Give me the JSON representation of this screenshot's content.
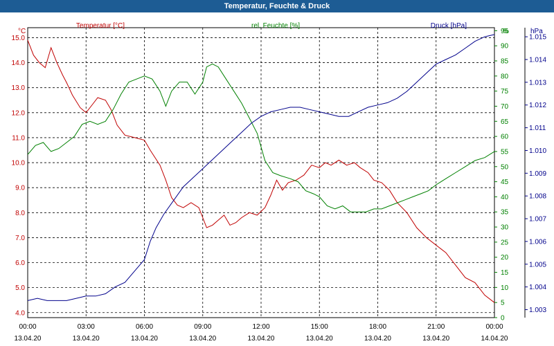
{
  "window": {
    "title": "Temperatur, Feuchte & Druck"
  },
  "chart_data": {
    "type": "line",
    "title": "Temperatur, Feuchte & Druck",
    "grid": true,
    "x_ticks": [
      {
        "time": "00:00",
        "date": "13.04.20"
      },
      {
        "time": "03:00",
        "date": "13.04.20"
      },
      {
        "time": "06:00",
        "date": "13.04.20"
      },
      {
        "time": "09:00",
        "date": "13.04.20"
      },
      {
        "time": "12:00",
        "date": "13.04.20"
      },
      {
        "time": "15:00",
        "date": "13.04.20"
      },
      {
        "time": "18:00",
        "date": "13.04.20"
      },
      {
        "time": "21:00",
        "date": "13.04.20"
      },
      {
        "time": "00:00",
        "date": "14.04.20"
      }
    ],
    "xlim_hours": [
      0,
      24
    ],
    "axes": {
      "temperature": {
        "unit": "°C",
        "ylim": [
          3.8,
          15.4
        ],
        "ticks": [
          "4.0",
          "5.0",
          "6.0",
          "7.0",
          "8.0",
          "9.0",
          "10.0",
          "11.0",
          "12.0",
          "13.0",
          "14.0",
          "15.0"
        ]
      },
      "humidity": {
        "unit": "%",
        "ylim": [
          0,
          96
        ],
        "ticks": [
          "0",
          "5",
          "10",
          "15",
          "20",
          "25",
          "30",
          "35",
          "40",
          "45",
          "50",
          "55",
          "60",
          "65",
          "70",
          "75",
          "80",
          "85",
          "90",
          "95",
          "%"
        ]
      },
      "pressure": {
        "unit": "hPa",
        "ylim": [
          1.00265,
          1.0154
        ],
        "ticks": [
          "1.003",
          "1.004",
          "1.005",
          "1.006",
          "1.007",
          "1.008",
          "1.009",
          "1.010",
          "1.011",
          "1.012",
          "1.013",
          "1.014",
          "1.015"
        ]
      }
    },
    "series": [
      {
        "name": "Temperatur [°C]",
        "axis": "temperature",
        "color": "#c00000",
        "points": [
          [
            0,
            14.9
          ],
          [
            0.3,
            14.3
          ],
          [
            0.6,
            14.0
          ],
          [
            0.9,
            13.8
          ],
          [
            1.2,
            14.6
          ],
          [
            1.5,
            14.0
          ],
          [
            1.8,
            13.5
          ],
          [
            2.0,
            13.2
          ],
          [
            2.3,
            12.7
          ],
          [
            2.7,
            12.2
          ],
          [
            3.0,
            12.0
          ],
          [
            3.3,
            12.3
          ],
          [
            3.6,
            12.6
          ],
          [
            4.0,
            12.5
          ],
          [
            4.3,
            12.1
          ],
          [
            4.6,
            11.5
          ],
          [
            5.0,
            11.1
          ],
          [
            5.5,
            11.0
          ],
          [
            6.0,
            10.9
          ],
          [
            6.3,
            10.5
          ],
          [
            6.8,
            9.9
          ],
          [
            7.1,
            9.3
          ],
          [
            7.4,
            8.6
          ],
          [
            7.7,
            8.3
          ],
          [
            8.0,
            8.2
          ],
          [
            8.4,
            8.4
          ],
          [
            8.8,
            8.2
          ],
          [
            9.0,
            7.8
          ],
          [
            9.2,
            7.4
          ],
          [
            9.5,
            7.5
          ],
          [
            9.8,
            7.7
          ],
          [
            10.1,
            7.9
          ],
          [
            10.4,
            7.5
          ],
          [
            10.7,
            7.6
          ],
          [
            11.0,
            7.8
          ],
          [
            11.4,
            8.0
          ],
          [
            11.8,
            7.9
          ],
          [
            12.2,
            8.2
          ],
          [
            12.5,
            8.7
          ],
          [
            12.8,
            9.3
          ],
          [
            13.1,
            8.9
          ],
          [
            13.4,
            9.2
          ],
          [
            13.8,
            9.3
          ],
          [
            14.2,
            9.5
          ],
          [
            14.6,
            9.9
          ],
          [
            15.0,
            9.8
          ],
          [
            15.3,
            10.0
          ],
          [
            15.6,
            9.9
          ],
          [
            16.0,
            10.1
          ],
          [
            16.4,
            9.9
          ],
          [
            16.8,
            10.0
          ],
          [
            17.1,
            9.8
          ],
          [
            17.5,
            9.6
          ],
          [
            17.8,
            9.3
          ],
          [
            18.2,
            9.2
          ],
          [
            18.6,
            8.9
          ],
          [
            19.0,
            8.4
          ],
          [
            19.5,
            8.0
          ],
          [
            20.0,
            7.4
          ],
          [
            20.5,
            7.0
          ],
          [
            21.0,
            6.7
          ],
          [
            21.5,
            6.4
          ],
          [
            22.0,
            5.9
          ],
          [
            22.5,
            5.4
          ],
          [
            23.0,
            5.2
          ],
          [
            23.5,
            4.7
          ],
          [
            24.0,
            4.4
          ]
        ]
      },
      {
        "name": "rel. Feuchte [%]",
        "axis": "humidity",
        "color": "#008000",
        "points": [
          [
            0,
            54
          ],
          [
            0.4,
            57
          ],
          [
            0.8,
            58
          ],
          [
            1.2,
            55
          ],
          [
            1.6,
            56
          ],
          [
            2.0,
            58
          ],
          [
            2.4,
            60
          ],
          [
            2.8,
            64
          ],
          [
            3.2,
            65
          ],
          [
            3.6,
            64
          ],
          [
            4.0,
            65
          ],
          [
            4.4,
            69
          ],
          [
            4.8,
            74
          ],
          [
            5.2,
            78
          ],
          [
            5.6,
            79
          ],
          [
            6.0,
            80
          ],
          [
            6.4,
            79
          ],
          [
            6.8,
            75
          ],
          [
            7.1,
            70
          ],
          [
            7.4,
            75
          ],
          [
            7.8,
            78
          ],
          [
            8.2,
            78
          ],
          [
            8.6,
            74
          ],
          [
            9.0,
            78
          ],
          [
            9.2,
            83
          ],
          [
            9.5,
            84
          ],
          [
            9.8,
            83
          ],
          [
            10.2,
            79
          ],
          [
            10.6,
            75
          ],
          [
            11.0,
            71
          ],
          [
            11.4,
            66
          ],
          [
            11.8,
            61
          ],
          [
            12.2,
            52
          ],
          [
            12.6,
            48
          ],
          [
            13.0,
            47
          ],
          [
            13.5,
            46
          ],
          [
            13.9,
            45
          ],
          [
            14.3,
            42
          ],
          [
            14.7,
            41
          ],
          [
            15.0,
            40
          ],
          [
            15.4,
            37
          ],
          [
            15.8,
            36
          ],
          [
            16.2,
            37
          ],
          [
            16.6,
            35
          ],
          [
            17.0,
            35
          ],
          [
            17.4,
            35
          ],
          [
            17.8,
            36
          ],
          [
            18.2,
            36
          ],
          [
            18.6,
            37
          ],
          [
            19.0,
            38
          ],
          [
            19.4,
            39
          ],
          [
            19.8,
            40
          ],
          [
            20.2,
            41
          ],
          [
            20.6,
            42
          ],
          [
            21.0,
            44
          ],
          [
            21.5,
            46
          ],
          [
            22.0,
            48
          ],
          [
            22.5,
            50
          ],
          [
            23.0,
            52
          ],
          [
            23.5,
            53
          ],
          [
            24.0,
            55
          ]
        ]
      },
      {
        "name": "Druck [hPa]",
        "axis": "pressure",
        "color": "#00008b",
        "points": [
          [
            0,
            1.0034
          ],
          [
            0.5,
            1.0035
          ],
          [
            1.0,
            1.0034
          ],
          [
            1.5,
            1.0034
          ],
          [
            2.0,
            1.0034
          ],
          [
            2.5,
            1.0035
          ],
          [
            3.0,
            1.0036
          ],
          [
            3.5,
            1.0036
          ],
          [
            4.0,
            1.0037
          ],
          [
            4.5,
            1.004
          ],
          [
            5.0,
            1.0042
          ],
          [
            5.5,
            1.0047
          ],
          [
            6.0,
            1.0052
          ],
          [
            6.3,
            1.006
          ],
          [
            6.6,
            1.0066
          ],
          [
            7.0,
            1.0072
          ],
          [
            7.5,
            1.0078
          ],
          [
            8.0,
            1.0084
          ],
          [
            8.5,
            1.0088
          ],
          [
            9.0,
            1.0092
          ],
          [
            9.5,
            1.0096
          ],
          [
            10.0,
            1.01
          ],
          [
            10.5,
            1.0104
          ],
          [
            11.0,
            1.0108
          ],
          [
            11.5,
            1.0112
          ],
          [
            12.0,
            1.0115
          ],
          [
            12.5,
            1.0117
          ],
          [
            13.0,
            1.0118
          ],
          [
            13.5,
            1.0119
          ],
          [
            14.0,
            1.0119
          ],
          [
            14.5,
            1.0118
          ],
          [
            15.0,
            1.0117
          ],
          [
            15.5,
            1.0116
          ],
          [
            16.0,
            1.0115
          ],
          [
            16.5,
            1.0115
          ],
          [
            17.0,
            1.0117
          ],
          [
            17.5,
            1.0119
          ],
          [
            18.0,
            1.012
          ],
          [
            18.5,
            1.0121
          ],
          [
            19.0,
            1.0123
          ],
          [
            19.5,
            1.0126
          ],
          [
            20.0,
            1.013
          ],
          [
            20.5,
            1.0134
          ],
          [
            21.0,
            1.0138
          ],
          [
            21.5,
            1.014
          ],
          [
            22.0,
            1.0142
          ],
          [
            22.5,
            1.0145
          ],
          [
            23.0,
            1.0148
          ],
          [
            23.5,
            1.015
          ],
          [
            24.0,
            1.0151
          ]
        ]
      }
    ]
  }
}
